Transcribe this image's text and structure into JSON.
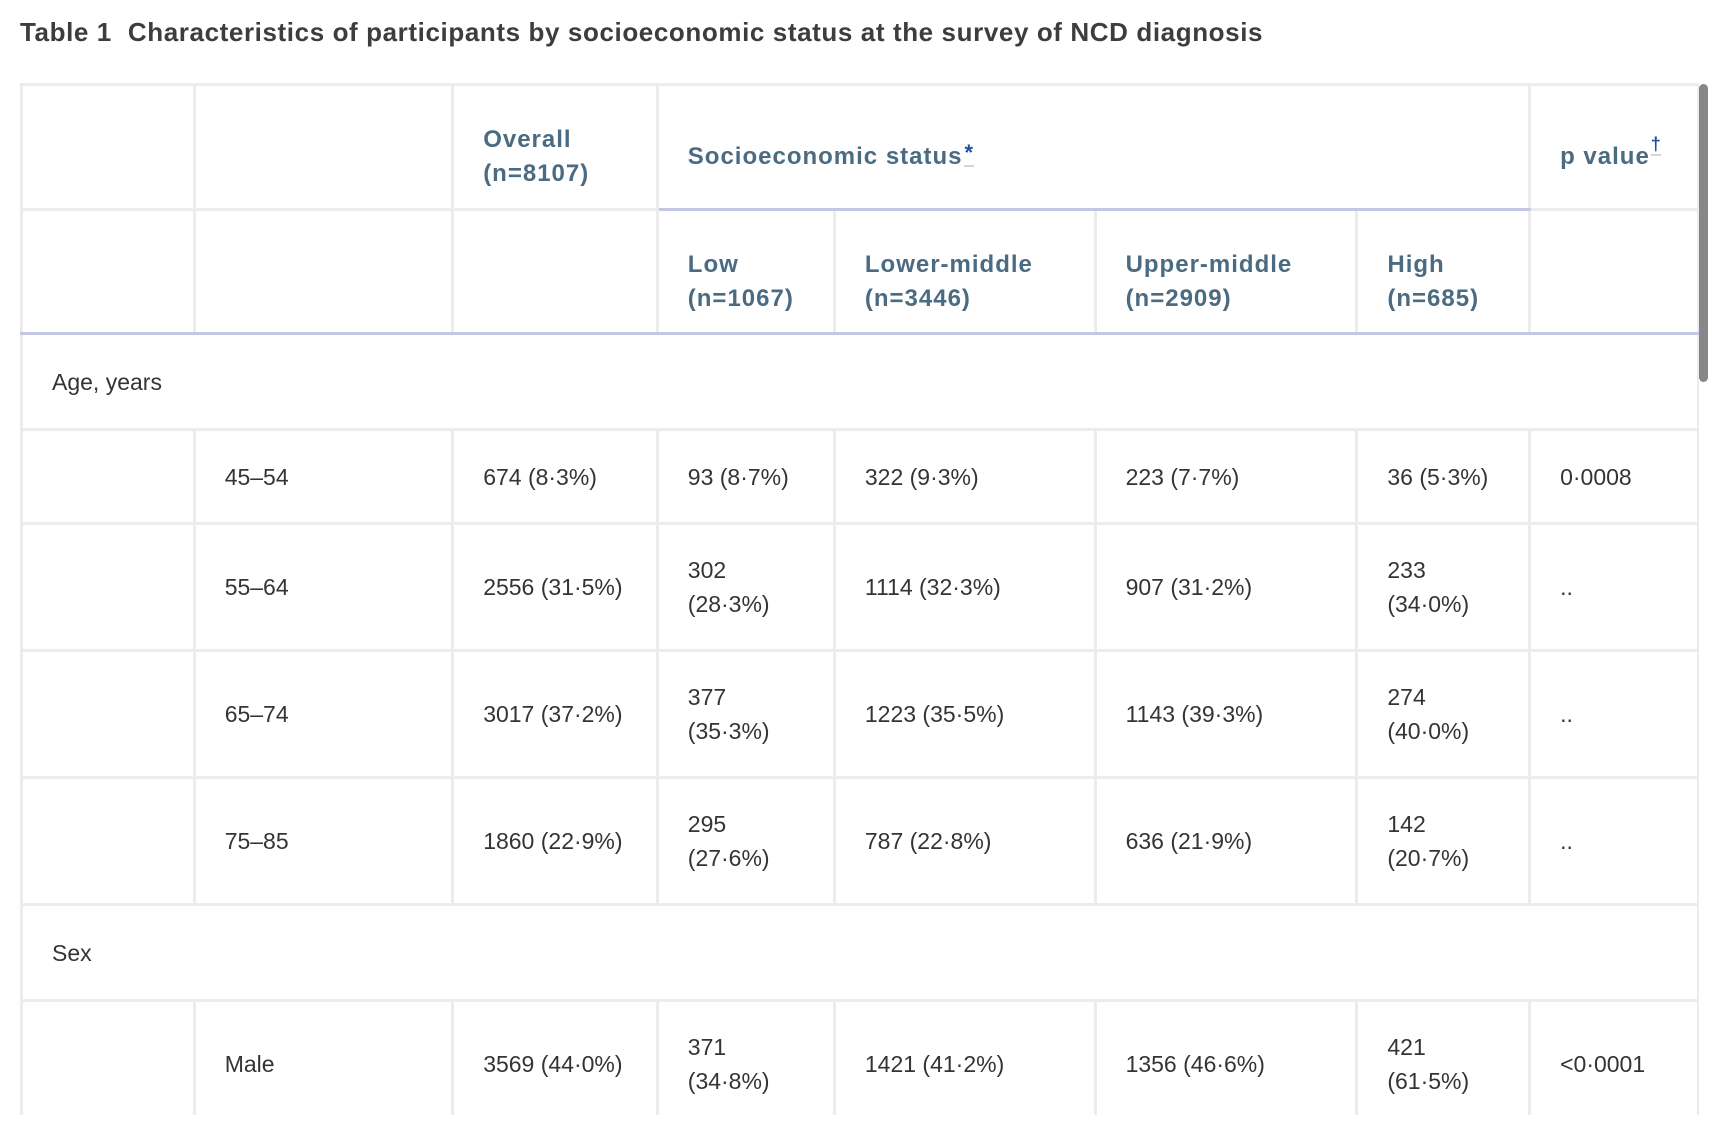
{
  "title": {
    "number": "Table 1",
    "text": "Characteristics of participants by socioeconomic status at the survey of NCD diagnosis"
  },
  "header": {
    "overall": {
      "label": "Overall",
      "n": "(n=8107)"
    },
    "ses": {
      "label": "Socioeconomic status",
      "footnote": "*"
    },
    "p_value": {
      "label": "p value",
      "footnote": "†"
    },
    "groups": [
      {
        "label": "Low",
        "n": "(n=1067)"
      },
      {
        "label": "Lower-middle",
        "n": "(n=3446)"
      },
      {
        "label": "Upper-middle",
        "n": "(n=2909)"
      },
      {
        "label": "High",
        "n": "(n=685)"
      }
    ]
  },
  "sections": [
    {
      "label": "Age, years",
      "rows": [
        {
          "label": "45–54",
          "overall": "674 (8·3%)",
          "low": "93 (8·7%)",
          "lower_middle": "322 (9·3%)",
          "upper_middle": "223 (7·7%)",
          "high": "36 (5·3%)",
          "p": "0·0008"
        },
        {
          "label": "55–64",
          "overall": "2556 (31·5%)",
          "low": "302 (28·3%)",
          "lower_middle": "1114 (32·3%)",
          "upper_middle": "907 (31·2%)",
          "high": "233 (34·0%)",
          "p": ".."
        },
        {
          "label": "65–74",
          "overall": "3017 (37·2%)",
          "low": "377 (35·3%)",
          "lower_middle": "1223 (35·5%)",
          "upper_middle": "1143 (39·3%)",
          "high": "274 (40·0%)",
          "p": ".."
        },
        {
          "label": "75–85",
          "overall": "1860 (22·9%)",
          "low": "295 (27·6%)",
          "lower_middle": "787 (22·8%)",
          "upper_middle": "636 (21·9%)",
          "high": "142 (20·7%)",
          "p": ".."
        }
      ]
    },
    {
      "label": "Sex",
      "rows": [
        {
          "label": "Male",
          "overall": "3569 (44·0%)",
          "low": "371 (34·8%)",
          "lower_middle": "1421 (41·2%)",
          "upper_middle": "1356 (46·6%)",
          "high": "421 (61·5%)",
          "p": "<0·0001"
        }
      ]
    }
  ],
  "colors": {
    "title_text": "#3d3d3d",
    "header_text": "#4a6b82",
    "footnote_link": "#1f4f9c",
    "body_text": "#343434",
    "header_rule": "#c4c7e3",
    "cell_border": "#ececec",
    "scrollbar_thumb": "#878787"
  }
}
